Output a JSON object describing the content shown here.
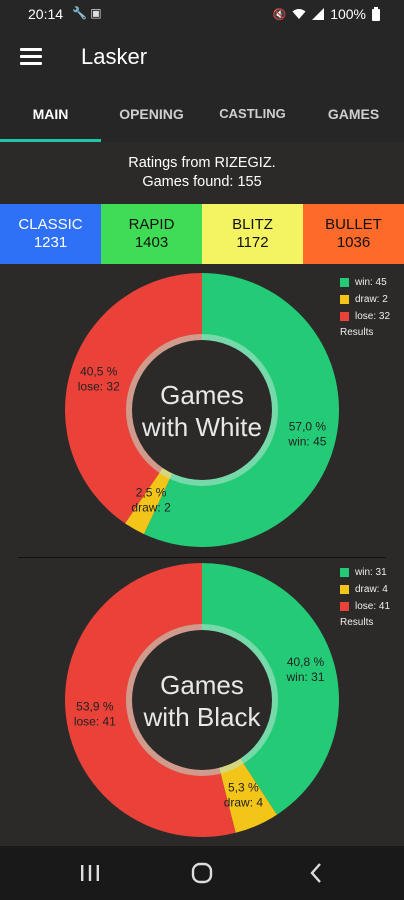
{
  "status_bar": {
    "time": "20:14",
    "battery": "100%",
    "icons": [
      "tools-icon",
      "notification-box-icon",
      "mute-icon",
      "wifi-icon",
      "signal-icon",
      "battery-icon"
    ]
  },
  "app": {
    "title": "Lasker"
  },
  "tabs": [
    {
      "label": "MAIN",
      "active": true
    },
    {
      "label": "OPENING",
      "active": false
    },
    {
      "label": "CASTLING",
      "active": false
    },
    {
      "label": "GAMES",
      "active": false
    }
  ],
  "info": {
    "ratings_line": "Ratings from RIZEGIZ.",
    "games_line": "Games found: 155"
  },
  "ratings": [
    {
      "label": "CLASSIC",
      "value": "1231",
      "color": "#2f71f6",
      "text_color": "#ffffff"
    },
    {
      "label": "RAPID",
      "value": "1403",
      "color": "#3fdc55",
      "text_color": "#111111"
    },
    {
      "label": "BLITZ",
      "value": "1172",
      "color": "#f4f462",
      "text_color": "#111111"
    },
    {
      "label": "BULLET",
      "value": "1036",
      "color": "#fd6a2a",
      "text_color": "#111111"
    }
  ],
  "colors": {
    "win": "#24cb76",
    "draw": "#f3c519",
    "lose": "#ea4139",
    "hole": "#2b2a29",
    "ring": "#b9e6d3"
  },
  "chart_data": [
    {
      "type": "pie",
      "title": "Games with White",
      "center_lines": [
        "Games",
        "with White"
      ],
      "legend_title": "Results",
      "slices": [
        {
          "key": "win",
          "legend": "win: 45",
          "percent": 57.0,
          "count": 45,
          "pct_label": "57,0 %",
          "count_label": "win: 45"
        },
        {
          "key": "draw",
          "legend": "draw: 2",
          "percent": 2.5,
          "count": 2,
          "pct_label": "2,5 %",
          "count_label": "draw: 2"
        },
        {
          "key": "lose",
          "legend": "lose: 32",
          "percent": 40.5,
          "count": 32,
          "pct_label": "40,5 %",
          "count_label": "lose: 32"
        }
      ]
    },
    {
      "type": "pie",
      "title": "Games with Black",
      "center_lines": [
        "Games",
        "with Black"
      ],
      "legend_title": "Results",
      "slices": [
        {
          "key": "win",
          "legend": "win: 31",
          "percent": 40.8,
          "count": 31,
          "pct_label": "40,8 %",
          "count_label": "win: 31"
        },
        {
          "key": "draw",
          "legend": "draw: 4",
          "percent": 5.3,
          "count": 4,
          "pct_label": "5,3 %",
          "count_label": "draw: 4"
        },
        {
          "key": "lose",
          "legend": "lose: 41",
          "percent": 53.9,
          "count": 41,
          "pct_label": "53,9 %",
          "count_label": "lose: 41"
        }
      ]
    }
  ],
  "nav": {
    "buttons": [
      "recents-icon",
      "home-icon",
      "back-icon"
    ]
  }
}
